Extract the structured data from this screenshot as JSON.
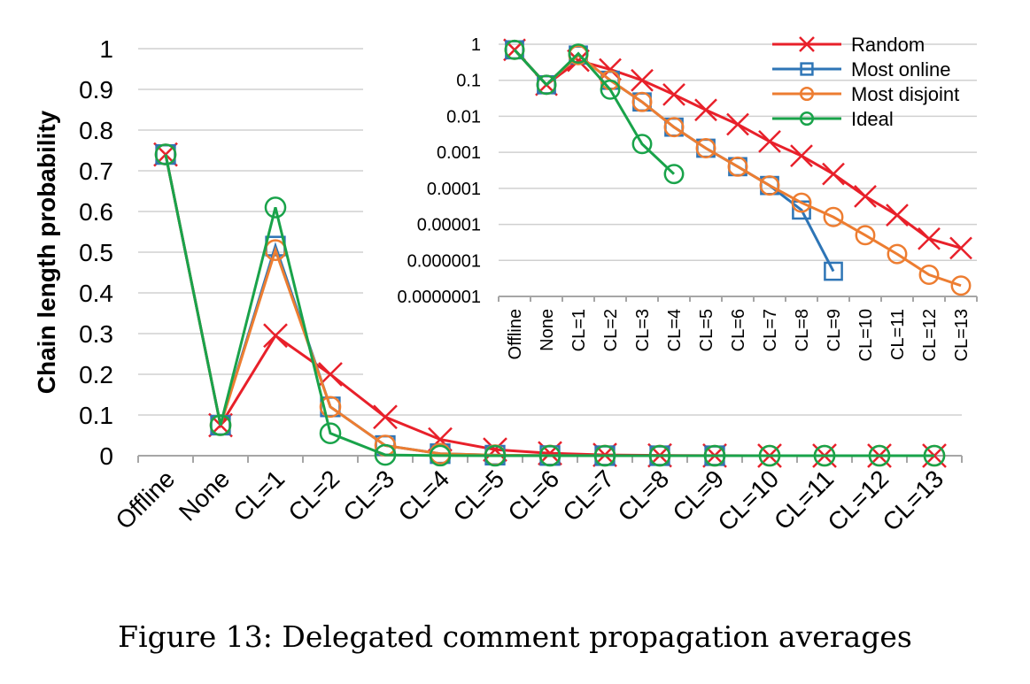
{
  "caption": "Figure 13: Delegated comment propagation averages",
  "chart_data": [
    {
      "type": "line",
      "title": "",
      "xlabel": "",
      "ylabel": "Chain length probability",
      "ylim": [
        0,
        1
      ],
      "yticks": [
        "0",
        "0.1",
        "0.2",
        "0.3",
        "0.4",
        "0.5",
        "0.6",
        "0.7",
        "0.8",
        "0.9",
        "1"
      ],
      "grid": true,
      "categories": [
        "Offline",
        "None",
        "CL=1",
        "CL=2",
        "CL=3",
        "CL=4",
        "CL=5",
        "CL=6",
        "CL=7",
        "CL=8",
        "CL=9",
        "CL=10",
        "CL=11",
        "CL=12",
        "CL=13"
      ],
      "series": [
        {
          "name": "Random",
          "color": "#e8202a",
          "marker": "x",
          "values": [
            0.74,
            0.075,
            0.295,
            0.2,
            0.095,
            0.04,
            0.015,
            0.006,
            0.002,
            0.0008,
            0.0003,
            0.0001,
            3e-05,
            1e-05,
            3e-06
          ]
        },
        {
          "name": "Most online",
          "color": "#2e75b6",
          "marker": "square",
          "values": [
            0.74,
            0.075,
            0.515,
            0.12,
            0.025,
            0.005,
            0.0013,
            0.0004,
            0.00012,
            2e-05,
            5e-07,
            null,
            null,
            null,
            null
          ]
        },
        {
          "name": "Most disjoint",
          "color": "#ed7d31",
          "marker": "circle",
          "values": [
            0.74,
            0.075,
            0.505,
            0.12,
            0.025,
            0.005,
            0.0013,
            0.0004,
            0.00012,
            4e-05,
            1.6e-05,
            5e-06,
            1.5e-06,
            4e-07,
            2e-07
          ]
        },
        {
          "name": "Ideal",
          "color": "#19a34a",
          "marker": "circle",
          "values": [
            0.74,
            0.075,
            0.61,
            0.055,
            0.002,
            0.00025,
            0,
            0,
            0,
            0,
            0,
            0,
            0,
            0,
            0
          ]
        }
      ]
    },
    {
      "type": "line",
      "title": "",
      "xlabel": "",
      "ylabel": "",
      "yscale": "log",
      "ylim": [
        1e-07,
        1
      ],
      "yticks": [
        "1",
        "0.1",
        "0.01",
        "0.001",
        "0.0001",
        "0.00001",
        "0.000001",
        "0.0000001"
      ],
      "grid": true,
      "legend": "top-right",
      "categories": [
        "Offline",
        "None",
        "CL=1",
        "CL=2",
        "CL=3",
        "CL=4",
        "CL=5",
        "CL=6",
        "CL=7",
        "CL=8",
        "CL=9",
        "CL=10",
        "CL=11",
        "CL=12",
        "CL=13"
      ],
      "series": [
        {
          "name": "Random",
          "color": "#e8202a",
          "marker": "x",
          "values": [
            0.7,
            0.075,
            0.35,
            0.2,
            0.1,
            0.04,
            0.015,
            0.006,
            0.002,
            0.0008,
            0.00025,
            6e-05,
            1.8e-05,
            4e-06,
            2.2e-06
          ]
        },
        {
          "name": "Most online",
          "color": "#2e75b6",
          "marker": "square",
          "values": [
            0.7,
            0.075,
            0.5,
            0.1,
            0.025,
            0.005,
            0.0013,
            0.0004,
            0.00012,
            2.5e-05,
            5e-07,
            null,
            null,
            null,
            null
          ]
        },
        {
          "name": "Most disjoint",
          "color": "#ed7d31",
          "marker": "circle",
          "values": [
            0.7,
            0.075,
            0.5,
            0.1,
            0.025,
            0.005,
            0.0013,
            0.0004,
            0.00012,
            4e-05,
            1.6e-05,
            5e-06,
            1.5e-06,
            4e-07,
            2e-07
          ]
        },
        {
          "name": "Ideal",
          "color": "#19a34a",
          "marker": "circle",
          "values": [
            0.7,
            0.075,
            0.55,
            0.055,
            0.0017,
            0.00025,
            null,
            null,
            null,
            null,
            null,
            null,
            null,
            null,
            null
          ]
        }
      ]
    }
  ]
}
